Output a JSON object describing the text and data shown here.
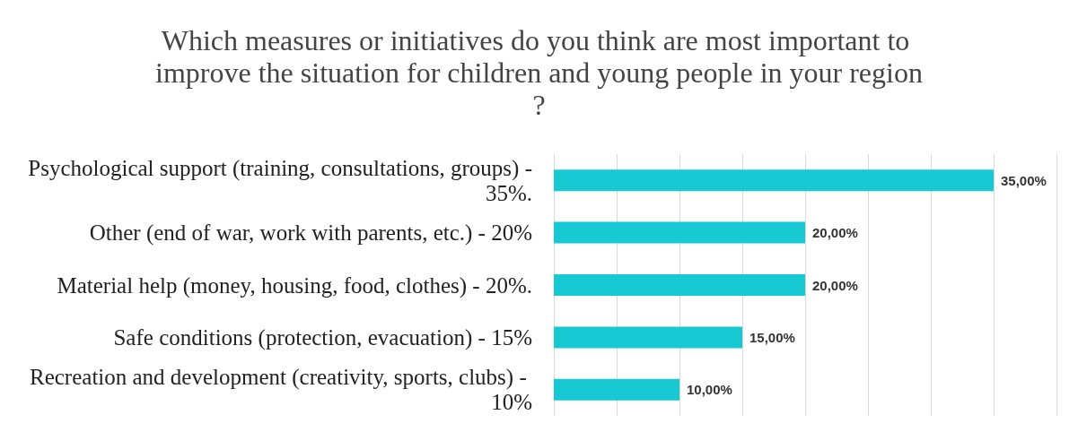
{
  "chart_data": {
    "type": "bar",
    "orientation": "horizontal",
    "title": "Which measures or initiatives do you think are most important to improve the situation for children and young people in your region?",
    "categories": [
      "Psychological support (training, consultations, groups) - 35%.",
      "Other (end of war, work with parents, etc.) - 20%",
      "Material help (money, housing, food, clothes) - 20%.",
      "Safe conditions (protection, evacuation) - 15%",
      "Recreation and development (creativity, sports, clubs) - 10%"
    ],
    "values": [
      35,
      20,
      20,
      15,
      10
    ],
    "value_labels": [
      "35,00%",
      "20,00%",
      "20,00%",
      "15,00%",
      "10,00%"
    ],
    "color": "#17c9d3",
    "xlim": [
      0,
      40
    ],
    "xticks": [
      {
        "value": 0,
        "label": null
      },
      {
        "value": 5,
        "label": null
      },
      {
        "value": 10,
        "label": null
      },
      {
        "value": 15,
        "label": null
      },
      {
        "value": 20,
        "label": null
      },
      {
        "value": 25,
        "label": null
      },
      {
        "value": 30,
        "label": null
      },
      {
        "value": 35,
        "label": null
      },
      {
        "value": 40,
        "label": null
      }
    ],
    "grid": "x",
    "tick_labels": "y"
  }
}
